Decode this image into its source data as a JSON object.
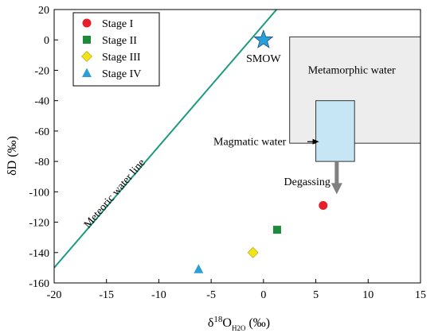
{
  "chart_data": {
    "type": "scatter",
    "title": "",
    "xlabel": {
      "prefix": "δ",
      "sup": "18",
      "main": "O",
      "sub": "H2O",
      "suffix": " (‰)"
    },
    "ylabel": "δD (‰)",
    "xlim": [
      -20,
      15
    ],
    "ylim": [
      -160,
      20
    ],
    "xticks": [
      -20,
      -15,
      -10,
      -5,
      0,
      5,
      10,
      15
    ],
    "yticks": [
      20,
      0,
      -20,
      -40,
      -60,
      -80,
      -100,
      -120,
      -140,
      -160
    ],
    "grid": false,
    "legend_position": "top-left",
    "series": [
      {
        "name": "Stage I",
        "marker": "circle",
        "color": "#e5202a",
        "x": 5.7,
        "y": -109
      },
      {
        "name": "Stage II",
        "marker": "square",
        "color": "#1e8a3c",
        "x": 1.3,
        "y": -125
      },
      {
        "name": "Stage III",
        "marker": "diamond",
        "color": "#f2e416",
        "x": -1.0,
        "y": -140
      },
      {
        "name": "Stage IV",
        "marker": "triangle",
        "color": "#2b9fd8",
        "x": -6.2,
        "y": -151
      }
    ],
    "smow": {
      "label": "SMOW",
      "x": 0,
      "y": 0,
      "color": "#2b9fd8"
    },
    "meteoric_line": {
      "label": "Meteoric water line",
      "slope": 8,
      "intercept": 10,
      "color": "#1b9a7f"
    },
    "metamorphic_box": {
      "label": "Metamorphic water",
      "x": [
        2.5,
        15
      ],
      "y": [
        -68,
        2
      ],
      "fill": "#ededed"
    },
    "magmatic_box": {
      "label": "Magmatic water",
      "x": [
        5.0,
        8.7
      ],
      "y": [
        -80,
        -40
      ],
      "fill": "#c6e6f5"
    },
    "degassing": {
      "label": "Degassing",
      "x": 7,
      "y_from": -80,
      "y_to": -100,
      "color": "#808080"
    }
  }
}
